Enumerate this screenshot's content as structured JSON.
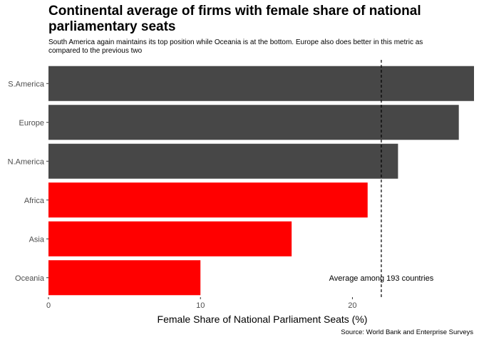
{
  "chart_data": {
    "type": "bar",
    "orientation": "horizontal",
    "title": "Continental average of firms with female share of national parliamentary seats",
    "subtitle": "South America again maintains its top position while Oceania is at the bottom. Europe also does better in this metric as compared to the previous two",
    "caption": "Source: World Bank and Enterprise Surveys",
    "categories": [
      "S.America",
      "Europe",
      "N.America",
      "Africa",
      "Asia",
      "Oceania"
    ],
    "values": [
      28.0,
      27.0,
      23.0,
      21.0,
      16.0,
      10.0
    ],
    "bar_colors": [
      "#474747",
      "#474747",
      "#474747",
      "#ff0000",
      "#ff0000",
      "#ff0000"
    ],
    "xlabel": "Female Share of National Parliament Seats (%)",
    "ylabel": "",
    "xlim": [
      0,
      28
    ],
    "x_ticks": [
      0,
      10,
      20
    ],
    "reference_line": {
      "value": 21.9,
      "style": "dashed",
      "label": "Average among 193 countries"
    },
    "grid": false,
    "legend": "none"
  }
}
